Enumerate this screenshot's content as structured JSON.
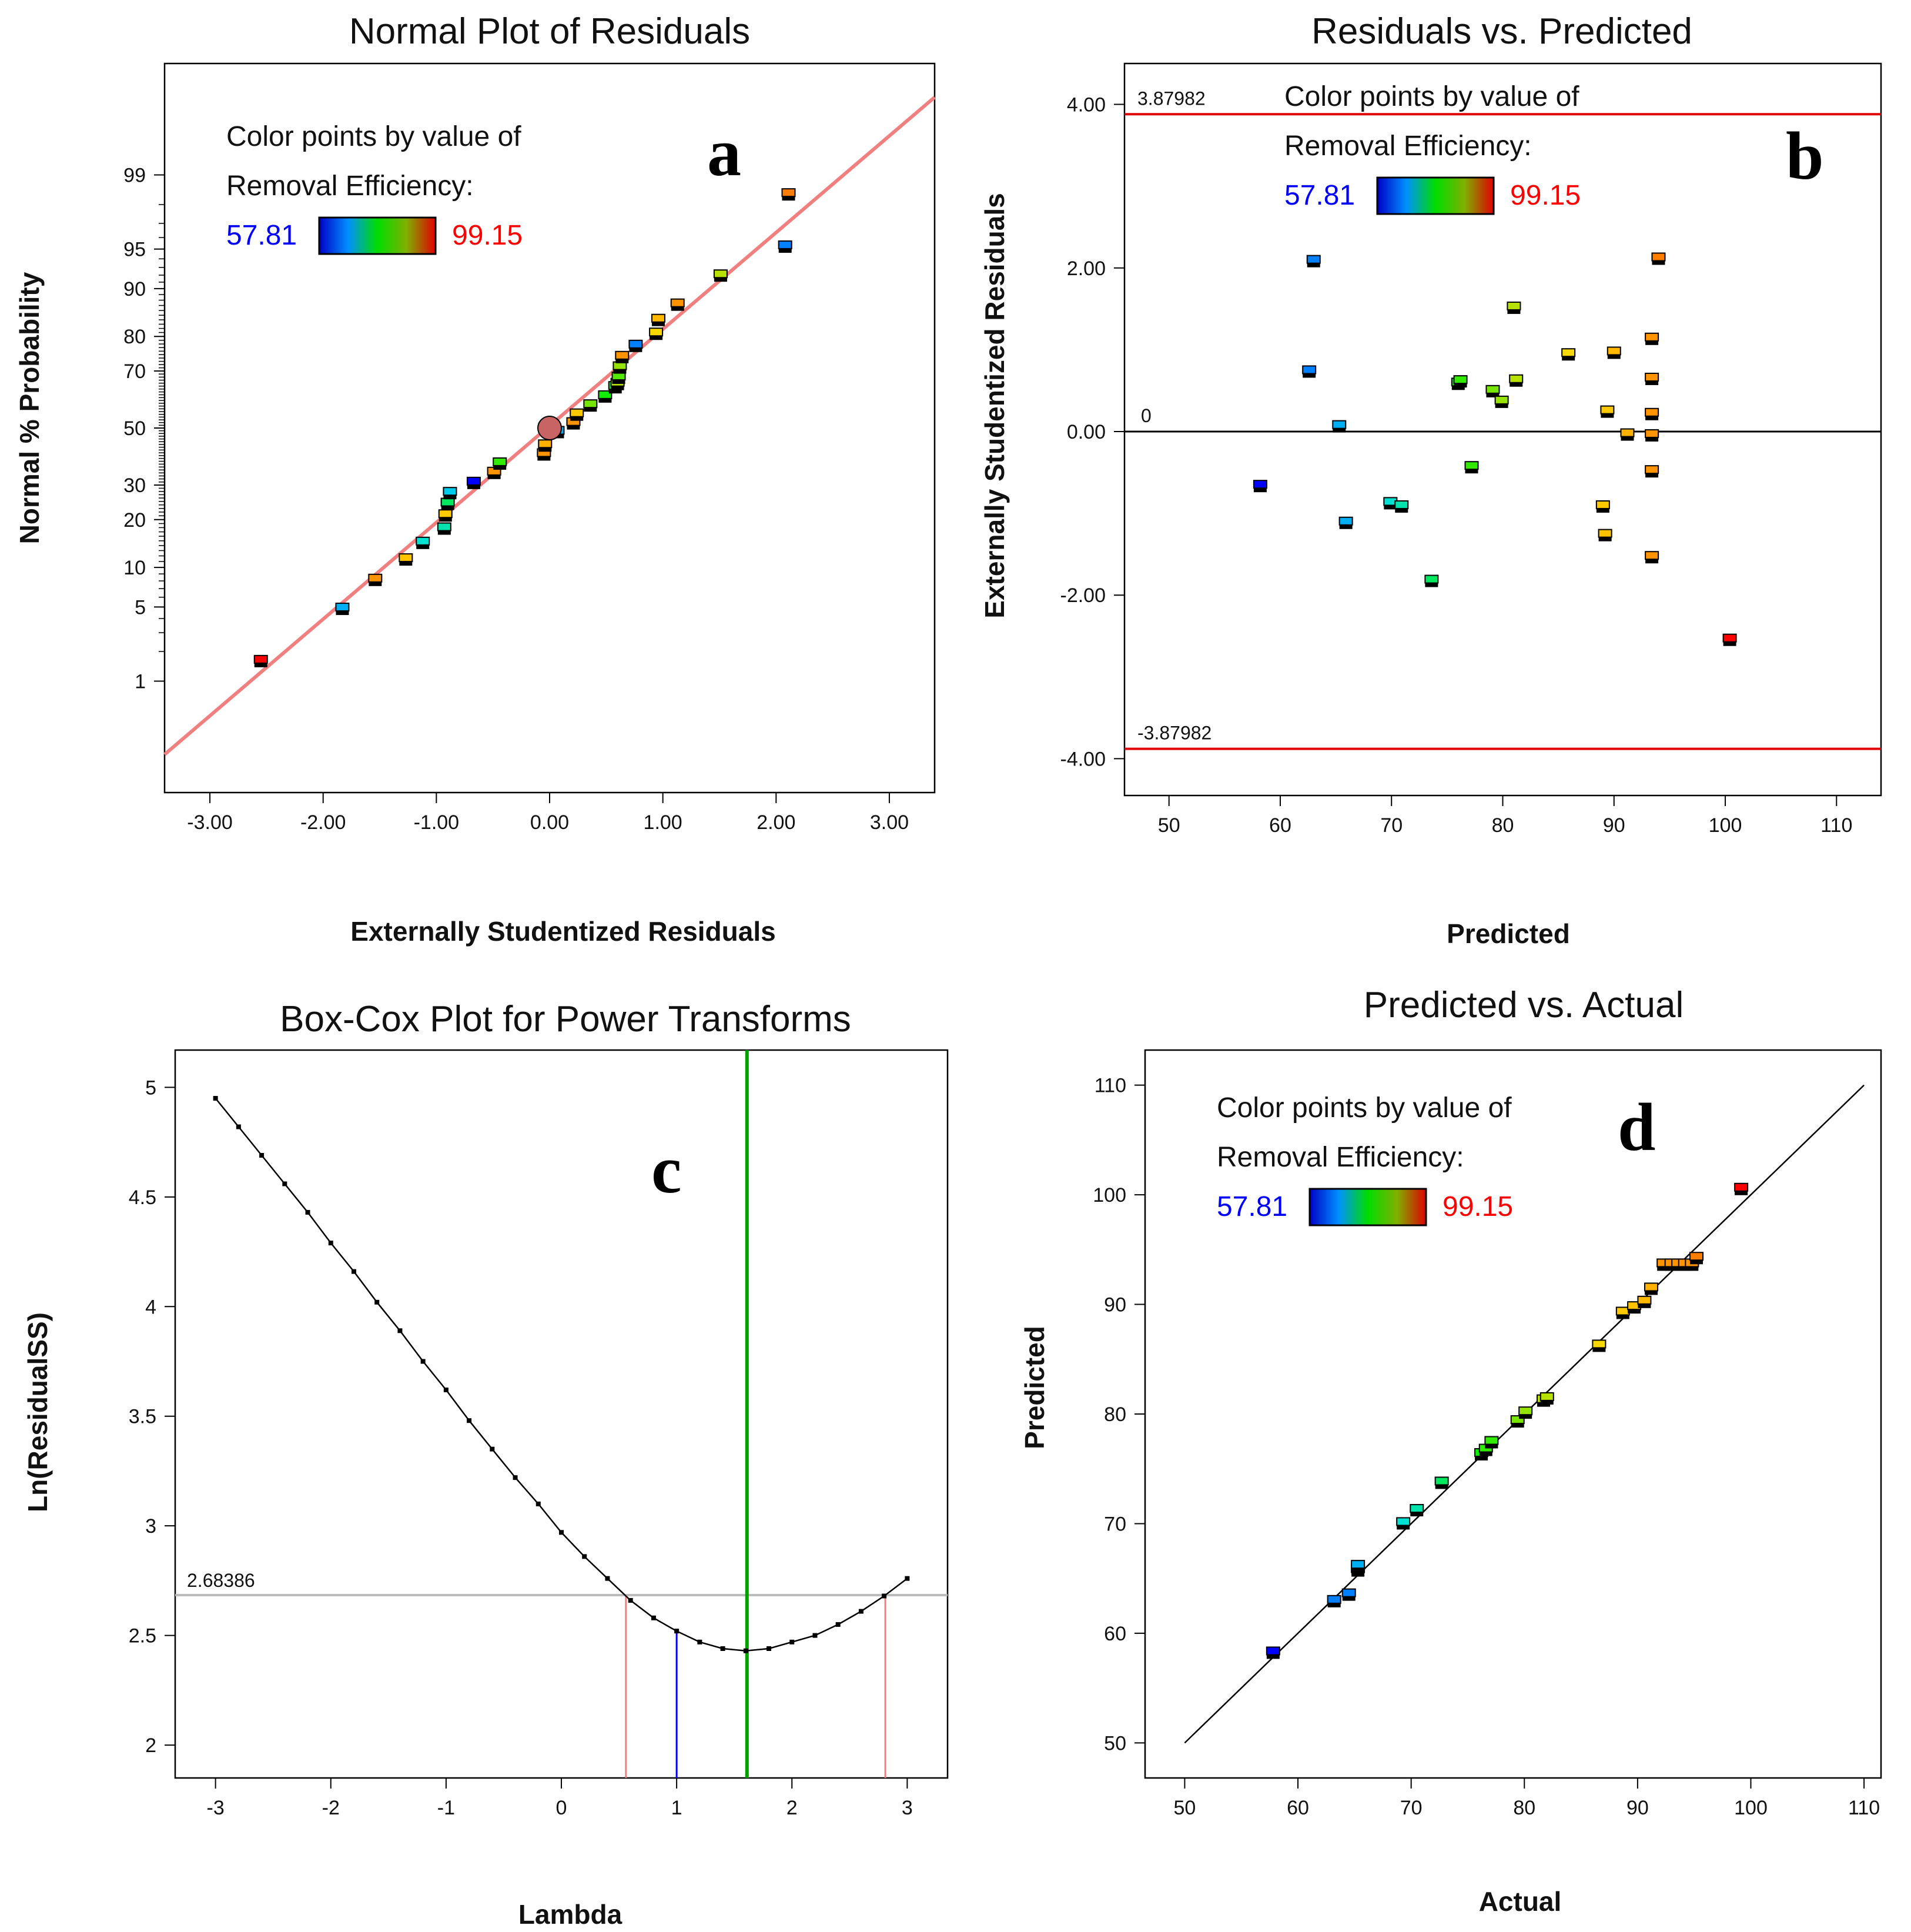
{
  "colors": {
    "marker_scale": [
      "#0000ff",
      "#0090ff",
      "#00e0e0",
      "#00ee00",
      "#c8e000",
      "#ffd700",
      "#ff9000",
      "#ff0000"
    ],
    "frame": "#000000",
    "fit_line": "#f08080",
    "limit_line": "#e00000",
    "green_line": "#00a000",
    "gray_line": "#bbbbbb",
    "blue_line": "#0000ff",
    "low_text": "#0000ff",
    "high_text": "#ff0000"
  },
  "legend": {
    "line1": "Color points by value of",
    "line2": "Removal Efficiency:",
    "low": "57.81",
    "high": "99.15"
  },
  "chart_data": [
    {
      "id": "a",
      "panel_label": "a",
      "type": "scatter",
      "title": "Normal Plot of Residuals",
      "xlabel": "Externally Studentized Residuals",
      "ylabel": "Normal % Probability",
      "xlim": [
        -3.4,
        3.4
      ],
      "ylim": [
        -3.35,
        3.35
      ],
      "x_ticks": [
        -3,
        -2,
        -1,
        0,
        1,
        2,
        3
      ],
      "x_tick_labels": [
        "-3.00",
        "-2.00",
        "-1.00",
        "0.00",
        "1.00",
        "2.00",
        "3.00"
      ],
      "y_ticks_prob": [
        1,
        5,
        10,
        20,
        30,
        50,
        70,
        80,
        90,
        95,
        99
      ],
      "y_tick_labels": [
        "1",
        "5",
        "10",
        "20",
        "30",
        "50",
        "70",
        "80",
        "90",
        "95",
        "99"
      ],
      "fit_line": [
        [
          -3.4,
          -3.0
        ],
        [
          3.4,
          3.04
        ]
      ],
      "center_point": [
        0,
        50
      ],
      "points": [
        {
          "x": -2.55,
          "p": 1.6,
          "v": 99.15
        },
        {
          "x": -1.83,
          "p": 4.8,
          "v": 66.0
        },
        {
          "x": -1.54,
          "p": 8.1,
          "v": 93.0
        },
        {
          "x": -1.27,
          "p": 11.3,
          "v": 89.0
        },
        {
          "x": -1.12,
          "p": 14.5,
          "v": 70.0
        },
        {
          "x": -0.93,
          "p": 17.7,
          "v": 71.0
        },
        {
          "x": -0.92,
          "p": 21.0,
          "v": 88.5
        },
        {
          "x": -0.9,
          "p": 24.2,
          "v": 73.0
        },
        {
          "x": -0.88,
          "p": 27.4,
          "v": 68.0
        },
        {
          "x": -0.67,
          "p": 30.6,
          "v": 57.81
        },
        {
          "x": -0.49,
          "p": 33.9,
          "v": 93.0
        },
        {
          "x": -0.44,
          "p": 37.1,
          "v": 77.0
        },
        {
          "x": -0.05,
          "p": 40.3,
          "v": 93.0
        },
        {
          "x": -0.04,
          "p": 43.5,
          "v": 90.5
        },
        {
          "x": 0.07,
          "p": 48.4,
          "v": 66.0
        },
        {
          "x": 0.21,
          "p": 51.6,
          "v": 93.0
        },
        {
          "x": 0.24,
          "p": 54.8,
          "v": 88.5
        },
        {
          "x": 0.36,
          "p": 58.1,
          "v": 79.0
        },
        {
          "x": 0.49,
          "p": 61.3,
          "v": 76.0
        },
        {
          "x": 0.58,
          "p": 64.5,
          "v": 74.0
        },
        {
          "x": 0.6,
          "p": 65.6,
          "v": 81.0
        },
        {
          "x": 0.61,
          "p": 67.7,
          "v": 78.0
        },
        {
          "x": 0.62,
          "p": 71.0,
          "v": 80.0
        },
        {
          "x": 0.64,
          "p": 74.2,
          "v": 93.0
        },
        {
          "x": 0.76,
          "p": 77.4,
          "v": 63.0
        },
        {
          "x": 0.94,
          "p": 80.6,
          "v": 86.5
        },
        {
          "x": 0.96,
          "p": 83.9,
          "v": 90.0
        },
        {
          "x": 1.13,
          "p": 87.1,
          "v": 93.0
        },
        {
          "x": 1.51,
          "p": 91.9,
          "v": 81.0
        },
        {
          "x": 2.08,
          "p": 95.2,
          "v": 63.0
        },
        {
          "x": 2.11,
          "p": 98.4,
          "v": 94.0
        }
      ]
    },
    {
      "id": "b",
      "panel_label": "b",
      "type": "scatter",
      "title": "Residuals vs. Predicted",
      "xlabel": "Predicted",
      "ylabel": "Externally Studentized Residuals",
      "xlim": [
        46,
        114
      ],
      "ylim": [
        -4.45,
        4.5
      ],
      "x_ticks": [
        50,
        60,
        70,
        80,
        90,
        100,
        110
      ],
      "x_tick_labels": [
        "50",
        "60",
        "70",
        "80",
        "90",
        "100",
        "110"
      ],
      "y_ticks": [
        -4,
        -2,
        0,
        2,
        4
      ],
      "y_tick_labels": [
        "-4.00",
        "-2.00",
        "0.00",
        "2.00",
        "4.00"
      ],
      "upper_limit": 3.87982,
      "lower_limit": -3.87982,
      "upper_limit_label": "3.87982",
      "lower_limit_label": "-3.87982",
      "zero_label": "0",
      "points": [
        {
          "x": 58.2,
          "y": -0.67,
          "v": 57.81
        },
        {
          "x": 63.0,
          "y": 2.08,
          "v": 63.0
        },
        {
          "x": 62.6,
          "y": 0.73,
          "v": 63.0
        },
        {
          "x": 65.3,
          "y": 0.06,
          "v": 66.0
        },
        {
          "x": 65.9,
          "y": -1.12,
          "v": 66.0
        },
        {
          "x": 69.9,
          "y": -0.88,
          "v": 70.0
        },
        {
          "x": 70.9,
          "y": -0.92,
          "v": 71.0
        },
        {
          "x": 73.6,
          "y": -1.83,
          "v": 73.0
        },
        {
          "x": 76.0,
          "y": 0.58,
          "v": 76.0
        },
        {
          "x": 76.2,
          "y": 0.61,
          "v": 77.0
        },
        {
          "x": 77.2,
          "y": -0.44,
          "v": 77.0
        },
        {
          "x": 79.1,
          "y": 0.49,
          "v": 79.0
        },
        {
          "x": 79.9,
          "y": 0.36,
          "v": 80.0
        },
        {
          "x": 81.0,
          "y": 1.51,
          "v": 81.0
        },
        {
          "x": 81.2,
          "y": 0.62,
          "v": 81.0
        },
        {
          "x": 85.9,
          "y": 0.94,
          "v": 86.5
        },
        {
          "x": 89.0,
          "y": -0.92,
          "v": 88.5
        },
        {
          "x": 89.2,
          "y": -1.27,
          "v": 89.0
        },
        {
          "x": 89.4,
          "y": 0.24,
          "v": 88.5
        },
        {
          "x": 90.0,
          "y": 0.96,
          "v": 90.0
        },
        {
          "x": 91.2,
          "y": -0.04,
          "v": 90.5
        },
        {
          "x": 93.4,
          "y": 1.13,
          "v": 93.0
        },
        {
          "x": 93.4,
          "y": 0.64,
          "v": 93.0
        },
        {
          "x": 93.4,
          "y": 0.21,
          "v": 93.0
        },
        {
          "x": 93.4,
          "y": -0.05,
          "v": 93.0
        },
        {
          "x": 93.4,
          "y": -0.49,
          "v": 93.0
        },
        {
          "x": 93.4,
          "y": -1.54,
          "v": 93.0
        },
        {
          "x": 94.0,
          "y": 2.11,
          "v": 94.0
        },
        {
          "x": 100.4,
          "y": -2.55,
          "v": 99.15
        }
      ]
    },
    {
      "id": "c",
      "panel_label": "c",
      "type": "line",
      "title": "Box-Cox Plot for Power Transforms",
      "xlabel": "Lambda",
      "ylabel": "Ln(ResidualSS)",
      "xlim": [
        -3.35,
        3.35
      ],
      "ylim": [
        1.85,
        5.17
      ],
      "x_ticks": [
        -3,
        -2,
        -1,
        0,
        1,
        2,
        3
      ],
      "x_tick_labels": [
        "-3",
        "-2",
        "-1",
        "0",
        "1",
        "2",
        "3"
      ],
      "y_ticks": [
        2,
        2.5,
        3,
        3.5,
        4,
        4.5,
        5
      ],
      "y_tick_labels": [
        "2",
        "2.5",
        "3",
        "3.5",
        "4",
        "4.5",
        "5"
      ],
      "threshold": 2.68386,
      "threshold_label": "2.68386",
      "lambda_best": 1.61,
      "ci_low": 0.56,
      "ci_high": 2.81,
      "lambda_current": 1.0,
      "curve_x": [
        -3.0,
        -2.8,
        -2.6,
        -2.4,
        -2.2,
        -2.0,
        -1.8,
        -1.6,
        -1.4,
        -1.2,
        -1.0,
        -0.8,
        -0.6,
        -0.4,
        -0.2,
        0.0,
        0.2,
        0.4,
        0.6,
        0.8,
        1.0,
        1.2,
        1.4,
        1.6,
        1.8,
        2.0,
        2.2,
        2.4,
        2.6,
        2.8,
        3.0
      ],
      "curve_y": [
        4.95,
        4.82,
        4.69,
        4.56,
        4.43,
        4.29,
        4.16,
        4.02,
        3.89,
        3.75,
        3.62,
        3.48,
        3.35,
        3.22,
        3.1,
        2.97,
        2.86,
        2.76,
        2.66,
        2.58,
        2.52,
        2.47,
        2.44,
        2.43,
        2.44,
        2.47,
        2.5,
        2.55,
        2.61,
        2.68,
        2.76
      ]
    },
    {
      "id": "d",
      "panel_label": "d",
      "type": "scatter",
      "title": "Predicted vs. Actual",
      "xlabel": "Actual",
      "ylabel": "Predicted",
      "xlim": [
        46.5,
        111.5
      ],
      "ylim": [
        46.8,
        113.2
      ],
      "x_ticks": [
        50,
        60,
        70,
        80,
        90,
        100,
        110
      ],
      "x_tick_labels": [
        "50",
        "60",
        "70",
        "80",
        "90",
        "100",
        "110"
      ],
      "y_ticks": [
        50,
        60,
        70,
        80,
        90,
        100,
        110
      ],
      "y_tick_labels": [
        "50",
        "60",
        "70",
        "80",
        "90",
        "100",
        "110"
      ],
      "identity_line": [
        [
          50,
          50
        ],
        [
          110,
          110
        ]
      ],
      "points": [
        {
          "x": 57.81,
          "y": 58.2,
          "v": 57.81
        },
        {
          "x": 63.2,
          "y": 62.9,
          "v": 63.0
        },
        {
          "x": 64.5,
          "y": 63.5,
          "v": 63.0
        },
        {
          "x": 65.3,
          "y": 65.7,
          "v": 66.0
        },
        {
          "x": 65.3,
          "y": 66.1,
          "v": 66.0
        },
        {
          "x": 69.3,
          "y": 70.0,
          "v": 70.0
        },
        {
          "x": 70.5,
          "y": 71.2,
          "v": 71.0
        },
        {
          "x": 72.7,
          "y": 73.7,
          "v": 73.0
        },
        {
          "x": 76.2,
          "y": 76.3,
          "v": 76.0
        },
        {
          "x": 76.6,
          "y": 76.7,
          "v": 77.0
        },
        {
          "x": 77.1,
          "y": 77.4,
          "v": 77.0
        },
        {
          "x": 79.4,
          "y": 79.3,
          "v": 79.0
        },
        {
          "x": 80.1,
          "y": 80.1,
          "v": 80.0
        },
        {
          "x": 81.7,
          "y": 81.2,
          "v": 81.0
        },
        {
          "x": 82.0,
          "y": 81.4,
          "v": 81.0
        },
        {
          "x": 86.6,
          "y": 86.2,
          "v": 86.5
        },
        {
          "x": 88.7,
          "y": 89.2,
          "v": 88.5
        },
        {
          "x": 89.7,
          "y": 89.7,
          "v": 89.0
        },
        {
          "x": 90.6,
          "y": 90.2,
          "v": 90.0
        },
        {
          "x": 91.2,
          "y": 91.4,
          "v": 90.5
        },
        {
          "x": 92.3,
          "y": 93.6,
          "v": 93.0
        },
        {
          "x": 93.0,
          "y": 93.6,
          "v": 93.0
        },
        {
          "x": 93.6,
          "y": 93.6,
          "v": 93.0
        },
        {
          "x": 94.2,
          "y": 93.6,
          "v": 93.0
        },
        {
          "x": 94.8,
          "y": 93.6,
          "v": 93.0
        },
        {
          "x": 95.2,
          "y": 94.2,
          "v": 94.0
        },
        {
          "x": 99.15,
          "y": 100.5,
          "v": 99.15
        }
      ]
    }
  ]
}
